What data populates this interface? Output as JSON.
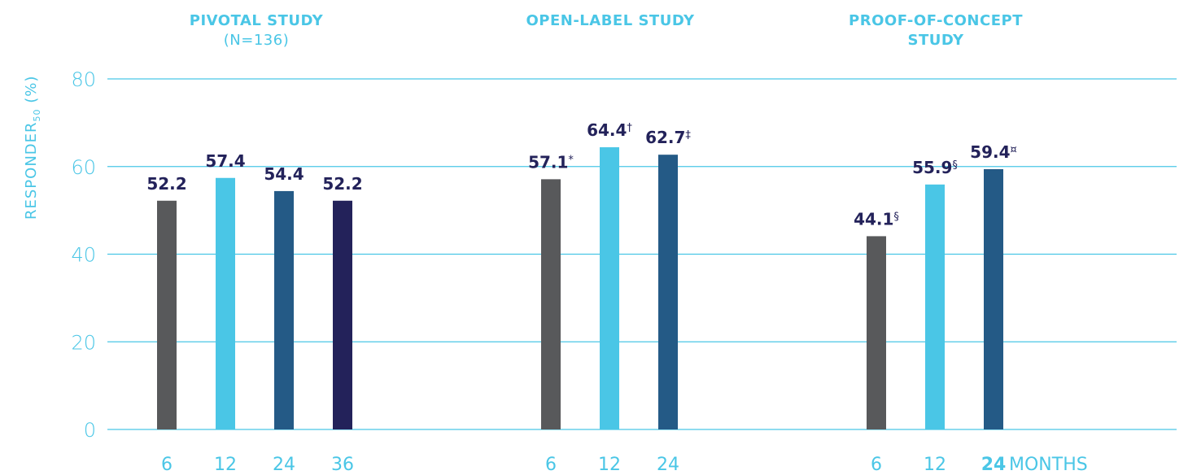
{
  "chart_data": {
    "type": "bar",
    "ylabel": "RESPONDER",
    "ylabel_sub": "50",
    "ylabel_unit": " (%)",
    "ylim": [
      0,
      80
    ],
    "yticks": [
      0,
      20,
      40,
      60,
      80
    ],
    "grid": true,
    "x_unit_label": "MONTHS",
    "colors": {
      "6": "#58595b",
      "12": "#4ac6e6",
      "24": "#245a86",
      "36": "#23225a",
      "axis_text": "#4ac6e6",
      "value_text": "#23225a",
      "grid": "#4ac6e6"
    },
    "groups": [
      {
        "title": "PIVOTAL STUDY",
        "subtitle": "(N=136)",
        "categories": [
          "6",
          "12",
          "24",
          "36"
        ],
        "values": [
          52.2,
          57.4,
          54.4,
          52.2
        ],
        "labels": [
          "52.2",
          "57.4",
          "54.4",
          "52.2"
        ],
        "marks": [
          "",
          "",
          "",
          ""
        ]
      },
      {
        "title": "OPEN-LABEL STUDY",
        "subtitle": "",
        "categories": [
          "6",
          "12",
          "24"
        ],
        "values": [
          57.1,
          64.4,
          62.7
        ],
        "labels": [
          "57.1",
          "64.4",
          "62.7"
        ],
        "marks": [
          "*",
          "†",
          "‡"
        ]
      },
      {
        "title": "PROOF-OF-CONCEPT STUDY",
        "subtitle": "",
        "categories": [
          "6",
          "12",
          "24"
        ],
        "values": [
          44.1,
          55.9,
          59.4
        ],
        "labels": [
          "44.1",
          "55.9",
          "59.4"
        ],
        "marks": [
          "§",
          "§",
          "¤"
        ]
      }
    ]
  }
}
